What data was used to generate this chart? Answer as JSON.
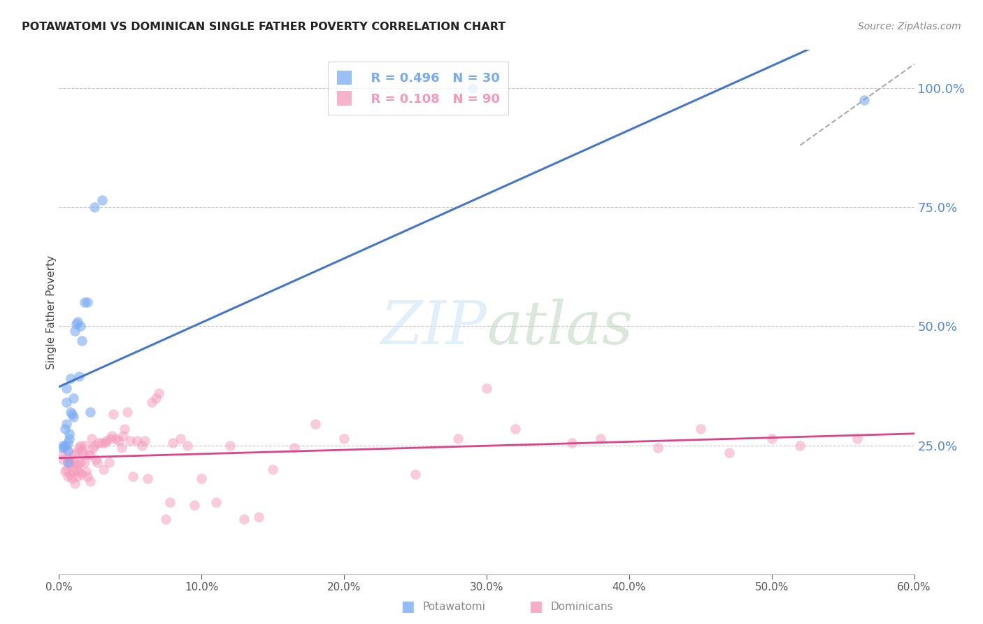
{
  "title": "POTAWATOMI VS DOMINICAN SINGLE FATHER POVERTY CORRELATION CHART",
  "source": "Source: ZipAtlas.com",
  "ylabel": "Single Father Poverty",
  "xlim": [
    0.0,
    0.6
  ],
  "ylim": [
    -0.02,
    1.08
  ],
  "y_ticks": [
    0.25,
    0.5,
    0.75,
    1.0
  ],
  "x_ticks": [
    0.0,
    0.1,
    0.2,
    0.3,
    0.4,
    0.5,
    0.6
  ],
  "grid_color": "#c8c8c8",
  "background_color": "#ffffff",
  "potawatomi_color": "#7aabf5",
  "potawatomi_line_color": "#4477cc",
  "dominican_color": "#f599bb",
  "dominican_line_color": "#dd4488",
  "potawatomi_R": 0.496,
  "potawatomi_N": 30,
  "dominican_R": 0.108,
  "dominican_N": 90,
  "potawatomi_x": [
    0.003,
    0.003,
    0.004,
    0.004,
    0.005,
    0.005,
    0.005,
    0.006,
    0.006,
    0.006,
    0.007,
    0.007,
    0.008,
    0.008,
    0.009,
    0.01,
    0.01,
    0.011,
    0.012,
    0.013,
    0.014,
    0.015,
    0.016,
    0.018,
    0.02,
    0.022,
    0.025,
    0.03,
    0.29,
    0.565
  ],
  "potawatomi_y": [
    0.245,
    0.25,
    0.285,
    0.25,
    0.37,
    0.34,
    0.295,
    0.24,
    0.255,
    0.215,
    0.275,
    0.265,
    0.39,
    0.32,
    0.315,
    0.31,
    0.35,
    0.49,
    0.505,
    0.51,
    0.395,
    0.5,
    0.47,
    0.55,
    0.55,
    0.32,
    0.75,
    0.765,
    1.0,
    0.975
  ],
  "dominican_x": [
    0.002,
    0.003,
    0.004,
    0.005,
    0.005,
    0.006,
    0.006,
    0.007,
    0.007,
    0.008,
    0.008,
    0.009,
    0.01,
    0.01,
    0.011,
    0.011,
    0.012,
    0.012,
    0.013,
    0.013,
    0.014,
    0.014,
    0.015,
    0.015,
    0.016,
    0.016,
    0.017,
    0.018,
    0.018,
    0.019,
    0.02,
    0.021,
    0.022,
    0.022,
    0.023,
    0.024,
    0.025,
    0.026,
    0.027,
    0.028,
    0.03,
    0.031,
    0.032,
    0.033,
    0.035,
    0.036,
    0.037,
    0.038,
    0.04,
    0.042,
    0.044,
    0.045,
    0.046,
    0.048,
    0.05,
    0.052,
    0.055,
    0.058,
    0.06,
    0.062,
    0.065,
    0.068,
    0.07,
    0.075,
    0.078,
    0.08,
    0.085,
    0.09,
    0.095,
    0.1,
    0.11,
    0.12,
    0.13,
    0.14,
    0.15,
    0.165,
    0.18,
    0.2,
    0.25,
    0.28,
    0.3,
    0.32,
    0.36,
    0.38,
    0.42,
    0.45,
    0.47,
    0.5,
    0.52,
    0.56
  ],
  "dominican_y": [
    0.23,
    0.22,
    0.195,
    0.2,
    0.245,
    0.225,
    0.185,
    0.22,
    0.21,
    0.19,
    0.215,
    0.18,
    0.195,
    0.23,
    0.17,
    0.215,
    0.235,
    0.2,
    0.21,
    0.185,
    0.245,
    0.195,
    0.25,
    0.215,
    0.24,
    0.19,
    0.23,
    0.25,
    0.215,
    0.195,
    0.185,
    0.23,
    0.175,
    0.23,
    0.265,
    0.245,
    0.25,
    0.22,
    0.215,
    0.255,
    0.255,
    0.2,
    0.255,
    0.26,
    0.215,
    0.265,
    0.27,
    0.315,
    0.265,
    0.26,
    0.245,
    0.27,
    0.285,
    0.32,
    0.26,
    0.185,
    0.26,
    0.25,
    0.26,
    0.18,
    0.34,
    0.35,
    0.36,
    0.095,
    0.13,
    0.255,
    0.265,
    0.25,
    0.125,
    0.18,
    0.13,
    0.25,
    0.095,
    0.1,
    0.2,
    0.245,
    0.295,
    0.265,
    0.19,
    0.265,
    0.37,
    0.285,
    0.255,
    0.265,
    0.245,
    0.285,
    0.235,
    0.265,
    0.25,
    0.265
  ],
  "ref_line_x": [
    0.52,
    0.6
  ],
  "ref_line_y": [
    0.88,
    1.05
  ]
}
